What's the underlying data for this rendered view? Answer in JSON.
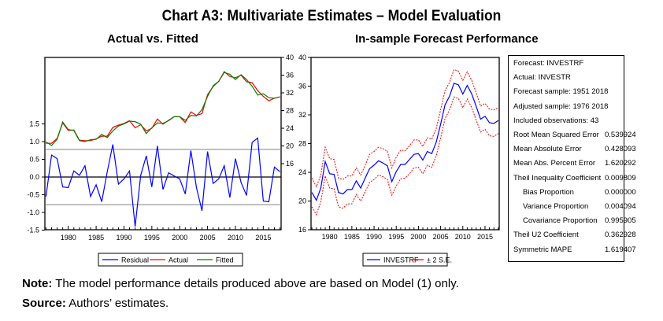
{
  "title": "Chart A3: Multivariate Estimates – Model Evaluation",
  "chart_data": [
    {
      "type": "line",
      "title": "Actual vs. Fitted",
      "x": [
        1976,
        1977,
        1978,
        1979,
        1980,
        1981,
        1982,
        1983,
        1984,
        1985,
        1986,
        1987,
        1988,
        1989,
        1990,
        1991,
        1992,
        1993,
        1994,
        1995,
        1996,
        1997,
        1998,
        1999,
        2000,
        2001,
        2002,
        2003,
        2004,
        2005,
        2006,
        2007,
        2008,
        2009,
        2010,
        2011,
        2012,
        2013,
        2014,
        2015,
        2016,
        2017,
        2018
      ],
      "x_ticks": [
        "1980",
        "1985",
        "1990",
        "1995",
        "2000",
        "2005",
        "2010",
        "2015"
      ],
      "x_tick_values": [
        1980,
        1985,
        1990,
        1995,
        2000,
        2005,
        2010,
        2015
      ],
      "y_left": {
        "ylim": [
          -1.5,
          1.5
        ],
        "ticks": [
          "-1.5",
          "-1.0",
          "-0.5",
          "0.0",
          "0.5",
          "1.0",
          "1.5"
        ],
        "tick_values": [
          -1.5,
          -1.0,
          -0.5,
          0.0,
          0.5,
          1.0,
          1.5
        ]
      },
      "y_right": {
        "ylim": [
          16,
          40
        ],
        "ticks": [
          "16",
          "20",
          "24",
          "28",
          "32",
          "36",
          "40"
        ],
        "tick_values": [
          16,
          20,
          24,
          28,
          32,
          36,
          40
        ],
        "plot_range": [
          0,
          40
        ]
      },
      "residual_bands": [
        0.78,
        -0.78
      ],
      "series": [
        {
          "name": "Residual",
          "axis": "left",
          "color": "#0000ff",
          "values": [
            -0.55,
            0.62,
            0.52,
            -0.28,
            -0.3,
            0.17,
            0.05,
            0.32,
            -0.55,
            -0.22,
            -0.7,
            0.15,
            0.92,
            -0.2,
            -0.05,
            0.17,
            -1.4,
            0.05,
            0.6,
            -0.28,
            0.88,
            -0.35,
            0.12,
            0.03,
            -0.05,
            -0.48,
            0.75,
            -0.3,
            -0.95,
            0.72,
            -0.18,
            -0.05,
            0.32,
            -0.58,
            0.52,
            -0.15,
            -0.52,
            0.98,
            1.1,
            -0.68,
            -0.7,
            0.28,
            0.15
          ]
        },
        {
          "name": "Actual",
          "axis": "right",
          "color": "#ff0000",
          "values": [
            20.6,
            20.6,
            21.7,
            25.2,
            23.5,
            23.6,
            21.3,
            21.2,
            21.2,
            21.6,
            22.2,
            22.2,
            24.2,
            24.7,
            25.1,
            25.7,
            24.1,
            24.8,
            23.4,
            24.0,
            26.1,
            24.9,
            25.8,
            26.6,
            26.6,
            25.3,
            27.7,
            26.9,
            27.3,
            31.6,
            33.4,
            34.6,
            36.8,
            35.7,
            35.4,
            36.0,
            34.5,
            34.3,
            32.5,
            31.2,
            30.2,
            30.8,
            31.1
          ]
        },
        {
          "name": "Fitted",
          "axis": "right",
          "color": "#008000",
          "values": [
            20.9,
            20.1,
            21.5,
            25.4,
            23.7,
            23.5,
            21.2,
            21.0,
            21.4,
            21.5,
            22.6,
            21.9,
            23.4,
            24.5,
            25.0,
            25.6,
            25.5,
            24.9,
            22.8,
            24.1,
            25.2,
            25.1,
            25.7,
            26.6,
            26.6,
            25.8,
            26.9,
            26.8,
            28.2,
            31.2,
            33.6,
            34.6,
            36.6,
            36.2,
            35.0,
            36.1,
            35.0,
            33.5,
            31.5,
            31.8,
            30.9,
            30.8,
            31.1
          ]
        }
      ],
      "legend": [
        "Residual",
        "Actual",
        "Fitted"
      ],
      "legend_position": "bottom"
    },
    {
      "type": "line",
      "title": "In-sample Forecast Performance",
      "x": [
        1976,
        1977,
        1978,
        1979,
        1980,
        1981,
        1982,
        1983,
        1984,
        1985,
        1986,
        1987,
        1988,
        1989,
        1990,
        1991,
        1992,
        1993,
        1994,
        1995,
        1996,
        1997,
        1998,
        1999,
        2000,
        2001,
        2002,
        2003,
        2004,
        2005,
        2006,
        2007,
        2008,
        2009,
        2010,
        2011,
        2012,
        2013,
        2014,
        2015,
        2016,
        2017,
        2018
      ],
      "x_ticks": [
        "1980",
        "1985",
        "1990",
        "1995",
        "2000",
        "2005",
        "2010",
        "2015"
      ],
      "x_tick_values": [
        1980,
        1985,
        1990,
        1995,
        2000,
        2005,
        2010,
        2015
      ],
      "ylim": [
        16,
        40
      ],
      "y_ticks": [
        "16",
        "20",
        "24",
        "28",
        "32",
        "36",
        "40"
      ],
      "y_tick_values": [
        16,
        20,
        24,
        28,
        32,
        36,
        40
      ],
      "series": [
        {
          "name": "INVESTRF",
          "color": "#0000ff",
          "values": [
            21.2,
            20.1,
            21.8,
            25.5,
            23.8,
            23.7,
            21.2,
            21.0,
            21.6,
            21.6,
            22.8,
            21.8,
            23.2,
            24.5,
            25.0,
            25.6,
            25.3,
            24.9,
            22.7,
            24.1,
            25.1,
            25.1,
            25.8,
            26.5,
            26.6,
            25.7,
            26.9,
            26.6,
            28.2,
            30.7,
            33.4,
            34.6,
            36.4,
            36.2,
            34.9,
            36.1,
            34.9,
            33.2,
            31.4,
            31.8,
            30.9,
            30.8,
            31.2
          ]
        },
        {
          "name": "+2 S.E.",
          "color": "#ff0000",
          "dashed": true,
          "values": [
            23.2,
            22.0,
            23.6,
            27.5,
            25.9,
            25.8,
            23.2,
            23.0,
            23.5,
            23.5,
            24.6,
            23.6,
            25.0,
            26.5,
            26.9,
            27.5,
            27.3,
            26.9,
            24.6,
            26.1,
            27.1,
            27.0,
            27.7,
            28.5,
            28.5,
            27.6,
            28.8,
            28.6,
            30.1,
            32.7,
            35.4,
            36.5,
            38.3,
            38.1,
            36.8,
            38.0,
            36.8,
            35.1,
            33.2,
            33.6,
            32.8,
            32.7,
            33.0
          ]
        },
        {
          "name": "-2 S.E.",
          "color": "#ff0000",
          "dashed": true,
          "values": [
            19.2,
            18.1,
            19.9,
            23.5,
            21.8,
            21.7,
            19.2,
            19.0,
            19.6,
            19.6,
            20.9,
            20.0,
            21.3,
            22.6,
            23.0,
            23.6,
            23.4,
            23.0,
            20.8,
            22.1,
            23.1,
            23.2,
            23.8,
            24.6,
            24.7,
            23.8,
            25.0,
            24.7,
            26.3,
            28.8,
            31.5,
            32.7,
            34.5,
            34.3,
            33.0,
            34.2,
            33.0,
            31.3,
            29.6,
            30.0,
            29.1,
            29.0,
            29.4
          ]
        }
      ],
      "legend": [
        "INVESTRF",
        "± 2 S.E."
      ],
      "legend_position": "bottom"
    }
  ],
  "subtitles": {
    "left": "Actual vs. Fitted",
    "right": "In-sample Forecast Performance"
  },
  "stats": [
    {
      "label": "Forecast: INVESTRF",
      "value": ""
    },
    {
      "label": "Actual: INVESTR",
      "value": ""
    },
    {
      "label": "Forecast sample: 1951 2018",
      "value": ""
    },
    {
      "label": "Adjusted sample: 1976 2018",
      "value": ""
    },
    {
      "label": "Included observations: 43",
      "value": ""
    },
    {
      "label": "Root Mean Squared Error",
      "value": "0.539924"
    },
    {
      "label": "Mean Absolute Error",
      "value": "0.428093"
    },
    {
      "label": "Mean Abs. Percent Error",
      "value": "1.620292"
    },
    {
      "label": "Theil Inequality Coefficient",
      "value": "0.009809"
    },
    {
      "label": "Bias Proportion",
      "value": "0.000000",
      "indent": true
    },
    {
      "label": "Variance Proportion",
      "value": "0.004094",
      "indent": true
    },
    {
      "label": "Covariance Proportion",
      "value": "0.995905",
      "indent": true
    },
    {
      "label": "Theil U2 Coefficient",
      "value": "0.362928"
    },
    {
      "label": "Symmetric MAPE",
      "value": "1.619407"
    }
  ],
  "note": {
    "label": "Note:",
    "text": " The model performance details produced above are based on Model (1) only."
  },
  "source": {
    "label": "Source:",
    "text": " Authors’ estimates."
  }
}
